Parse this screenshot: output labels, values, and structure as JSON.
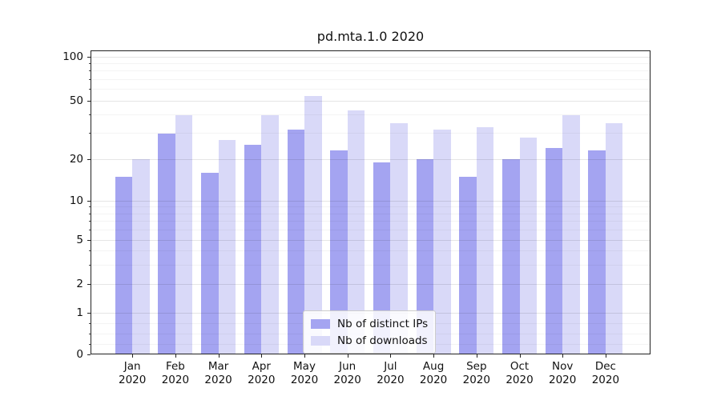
{
  "chart_data": {
    "type": "bar",
    "title": "pd.mta.1.0 2020",
    "categories": [
      "Jan 2020",
      "Feb 2020",
      "Mar 2020",
      "Apr 2020",
      "May 2020",
      "Jun 2020",
      "Jul 2020",
      "Aug 2020",
      "Sep 2020",
      "Oct 2020",
      "Nov 2020",
      "Dec 2020"
    ],
    "series": [
      {
        "name": "Nb of distinct IPs",
        "color": "#a4a4f1",
        "values": [
          15,
          30,
          16,
          25,
          32,
          23,
          19,
          20,
          15,
          20,
          24,
          23
        ]
      },
      {
        "name": "Nb of downloads",
        "color": "#d9d9f8",
        "values": [
          20,
          40,
          27,
          40,
          54,
          43,
          35,
          32,
          33,
          28,
          40,
          35
        ]
      }
    ],
    "yscale": "symlog",
    "yticks": [
      100,
      50,
      20,
      10,
      5,
      2,
      1,
      0
    ],
    "ylim": [
      0,
      107
    ],
    "xlabel": "",
    "ylabel": "",
    "grid": "both",
    "legend_position": "lower center"
  },
  "ui": {
    "background": "#ffffff",
    "spine_color": "#222222",
    "text_color": "#111111",
    "major_grid_rgba": "rgba(0,0,0,0.10)",
    "minor_grid_rgba": "rgba(0,0,0,0.045)"
  }
}
